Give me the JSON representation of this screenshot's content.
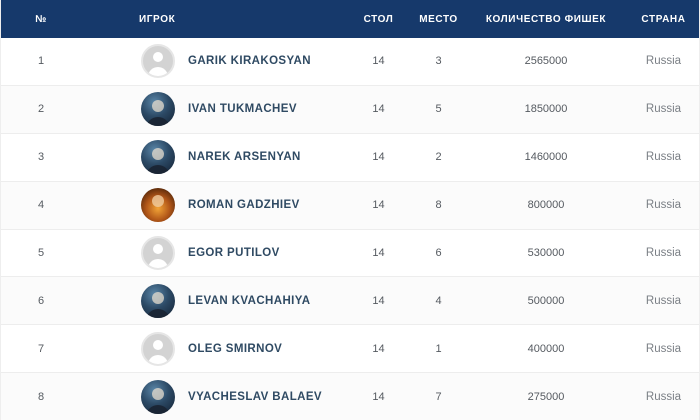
{
  "table": {
    "columns": [
      "№",
      "ИГРОК",
      "СТОЛ",
      "МЕСТО",
      "КОЛИЧЕСТВО ФИШЕК",
      "СТРАНА"
    ],
    "rows": [
      {
        "num": "1",
        "player": "GARIK KIRAKOSYAN",
        "avatar": "placeholder",
        "table": "14",
        "place": "3",
        "chips": "2565000",
        "country": "Russia"
      },
      {
        "num": "2",
        "player": "IVAN TUKMACHEV",
        "avatar": "photo",
        "table": "14",
        "place": "5",
        "chips": "1850000",
        "country": "Russia"
      },
      {
        "num": "3",
        "player": "NAREK ARSENYAN",
        "avatar": "photo",
        "table": "14",
        "place": "2",
        "chips": "1460000",
        "country": "Russia"
      },
      {
        "num": "4",
        "player": "ROMAN GADZHIEV",
        "avatar": "photo-orange",
        "table": "14",
        "place": "8",
        "chips": "800000",
        "country": "Russia"
      },
      {
        "num": "5",
        "player": "EGOR PUTILOV",
        "avatar": "placeholder",
        "table": "14",
        "place": "6",
        "chips": "530000",
        "country": "Russia"
      },
      {
        "num": "6",
        "player": "LEVAN KVACHAHIYA",
        "avatar": "photo",
        "table": "14",
        "place": "4",
        "chips": "500000",
        "country": "Russia"
      },
      {
        "num": "7",
        "player": "OLEG SMIRNOV",
        "avatar": "placeholder",
        "table": "14",
        "place": "1",
        "chips": "400000",
        "country": "Russia"
      },
      {
        "num": "8",
        "player": "VYACHESLAV BALAEV",
        "avatar": "photo",
        "table": "14",
        "place": "7",
        "chips": "275000",
        "country": "Russia"
      }
    ]
  },
  "colors": {
    "header_bg": "#16396b",
    "header_text": "#ffffff",
    "player_name": "#2f4a63",
    "muted_text": "#7a7f85",
    "row_border": "#ededed"
  }
}
